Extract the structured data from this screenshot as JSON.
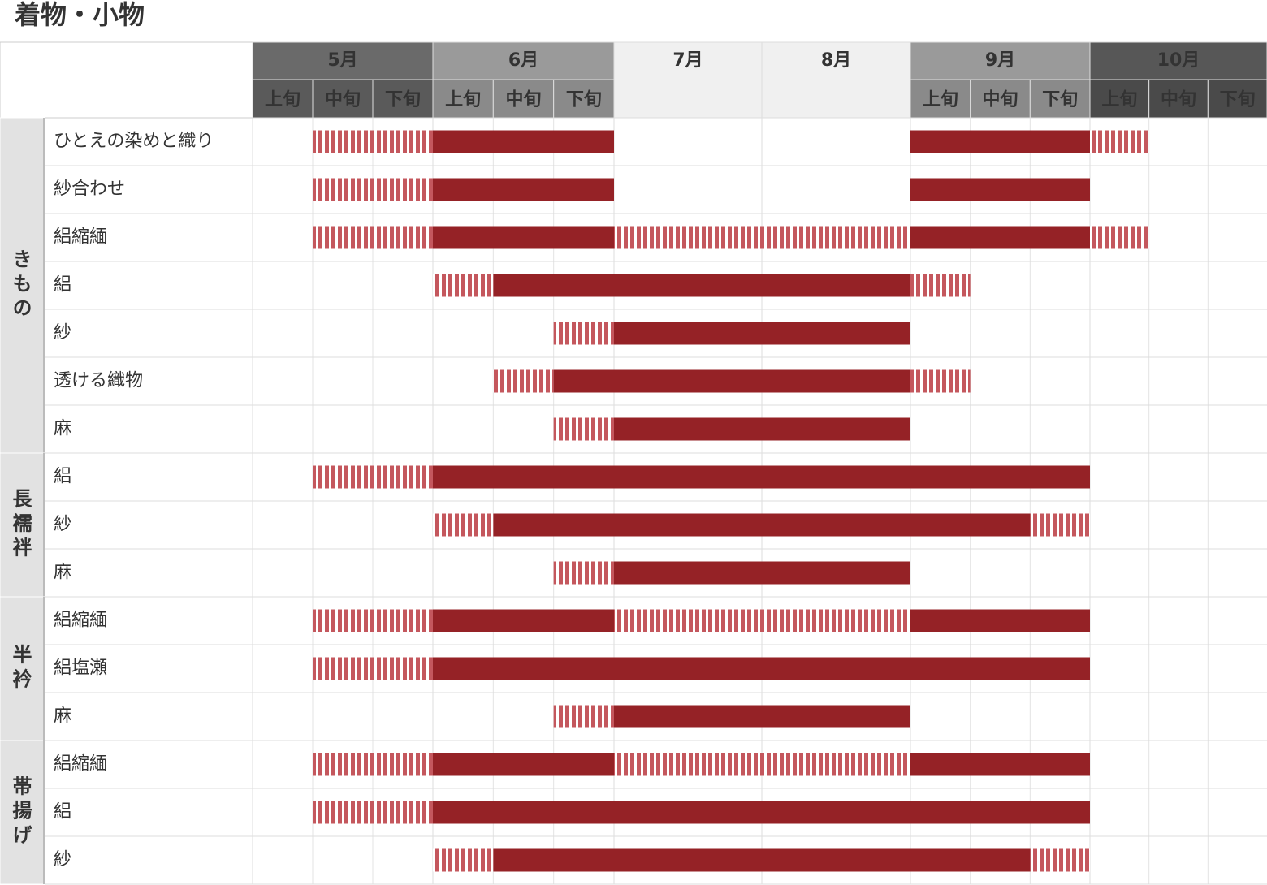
{
  "title": "着物・小物",
  "months": [
    {
      "label": "5月",
      "periods": [
        "上旬",
        "中旬",
        "下旬"
      ]
    },
    {
      "label": "6月",
      "periods": [
        "上旬",
        "中旬",
        "下旬"
      ]
    },
    {
      "label": "7月",
      "periods": []
    },
    {
      "label": "8月",
      "periods": []
    },
    {
      "label": "9月",
      "periods": [
        "上旬",
        "中旬",
        "下旬"
      ]
    },
    {
      "label": "10月",
      "periods": [
        "上旬",
        "中旬",
        "下旬"
      ]
    }
  ],
  "groups": [
    {
      "label": "きもの",
      "rows": [
        {
          "label": "ひとえの染めと織り",
          "solid": [
            [
              3,
              6
            ],
            [
              12,
              15
            ]
          ],
          "striped": [
            [
              1,
              3
            ],
            [
              15,
              16
            ]
          ]
        },
        {
          "label": "紗合わせ",
          "solid": [
            [
              3,
              6
            ],
            [
              12,
              15
            ]
          ],
          "striped": [
            [
              1,
              3
            ]
          ]
        },
        {
          "label": "絽縮緬",
          "solid": [
            [
              3,
              6
            ],
            [
              12,
              15
            ]
          ],
          "striped": [
            [
              1,
              3
            ],
            [
              6,
              12
            ],
            [
              15,
              16
            ]
          ]
        },
        {
          "label": "絽",
          "solid": [
            [
              4,
              12
            ]
          ],
          "striped": [
            [
              3,
              4
            ],
            [
              12,
              13
            ]
          ]
        },
        {
          "label": "紗",
          "solid": [
            [
              6,
              12
            ]
          ],
          "striped": [
            [
              5,
              6
            ]
          ]
        },
        {
          "label": "透ける織物",
          "solid": [
            [
              5,
              12
            ]
          ],
          "striped": [
            [
              4,
              5
            ],
            [
              12,
              13
            ]
          ]
        },
        {
          "label": "麻",
          "solid": [
            [
              6,
              12
            ]
          ],
          "striped": [
            [
              5,
              6
            ]
          ]
        }
      ]
    },
    {
      "label": "長襦袢",
      "rows": [
        {
          "label": "絽",
          "solid": [
            [
              3,
              15
            ]
          ],
          "striped": [
            [
              1,
              3
            ]
          ]
        },
        {
          "label": "紗",
          "solid": [
            [
              4,
              14
            ]
          ],
          "striped": [
            [
              3,
              4
            ],
            [
              14,
              15
            ]
          ]
        },
        {
          "label": "麻",
          "solid": [
            [
              6,
              12
            ]
          ],
          "striped": [
            [
              5,
              6
            ]
          ]
        }
      ]
    },
    {
      "label": "半衿",
      "rows": [
        {
          "label": "絽縮緬",
          "solid": [
            [
              3,
              6
            ],
            [
              12,
              15
            ]
          ],
          "striped": [
            [
              1,
              3
            ],
            [
              6,
              12
            ]
          ]
        },
        {
          "label": "絽塩瀬",
          "solid": [
            [
              3,
              15
            ]
          ],
          "striped": [
            [
              1,
              3
            ]
          ]
        },
        {
          "label": "麻",
          "solid": [
            [
              6,
              12
            ]
          ],
          "striped": [
            [
              5,
              6
            ]
          ]
        }
      ]
    },
    {
      "label": "帯揚げ",
      "rows": [
        {
          "label": "絽縮緬",
          "solid": [
            [
              3,
              6
            ],
            [
              12,
              15
            ]
          ],
          "striped": [
            [
              1,
              3
            ],
            [
              6,
              12
            ]
          ]
        },
        {
          "label": "絽",
          "solid": [
            [
              3,
              15
            ]
          ],
          "striped": [
            [
              1,
              3
            ]
          ]
        },
        {
          "label": "紗",
          "solid": [
            [
              4,
              14
            ]
          ],
          "striped": [
            [
              3,
              4
            ],
            [
              14,
              15
            ]
          ]
        }
      ]
    }
  ]
}
